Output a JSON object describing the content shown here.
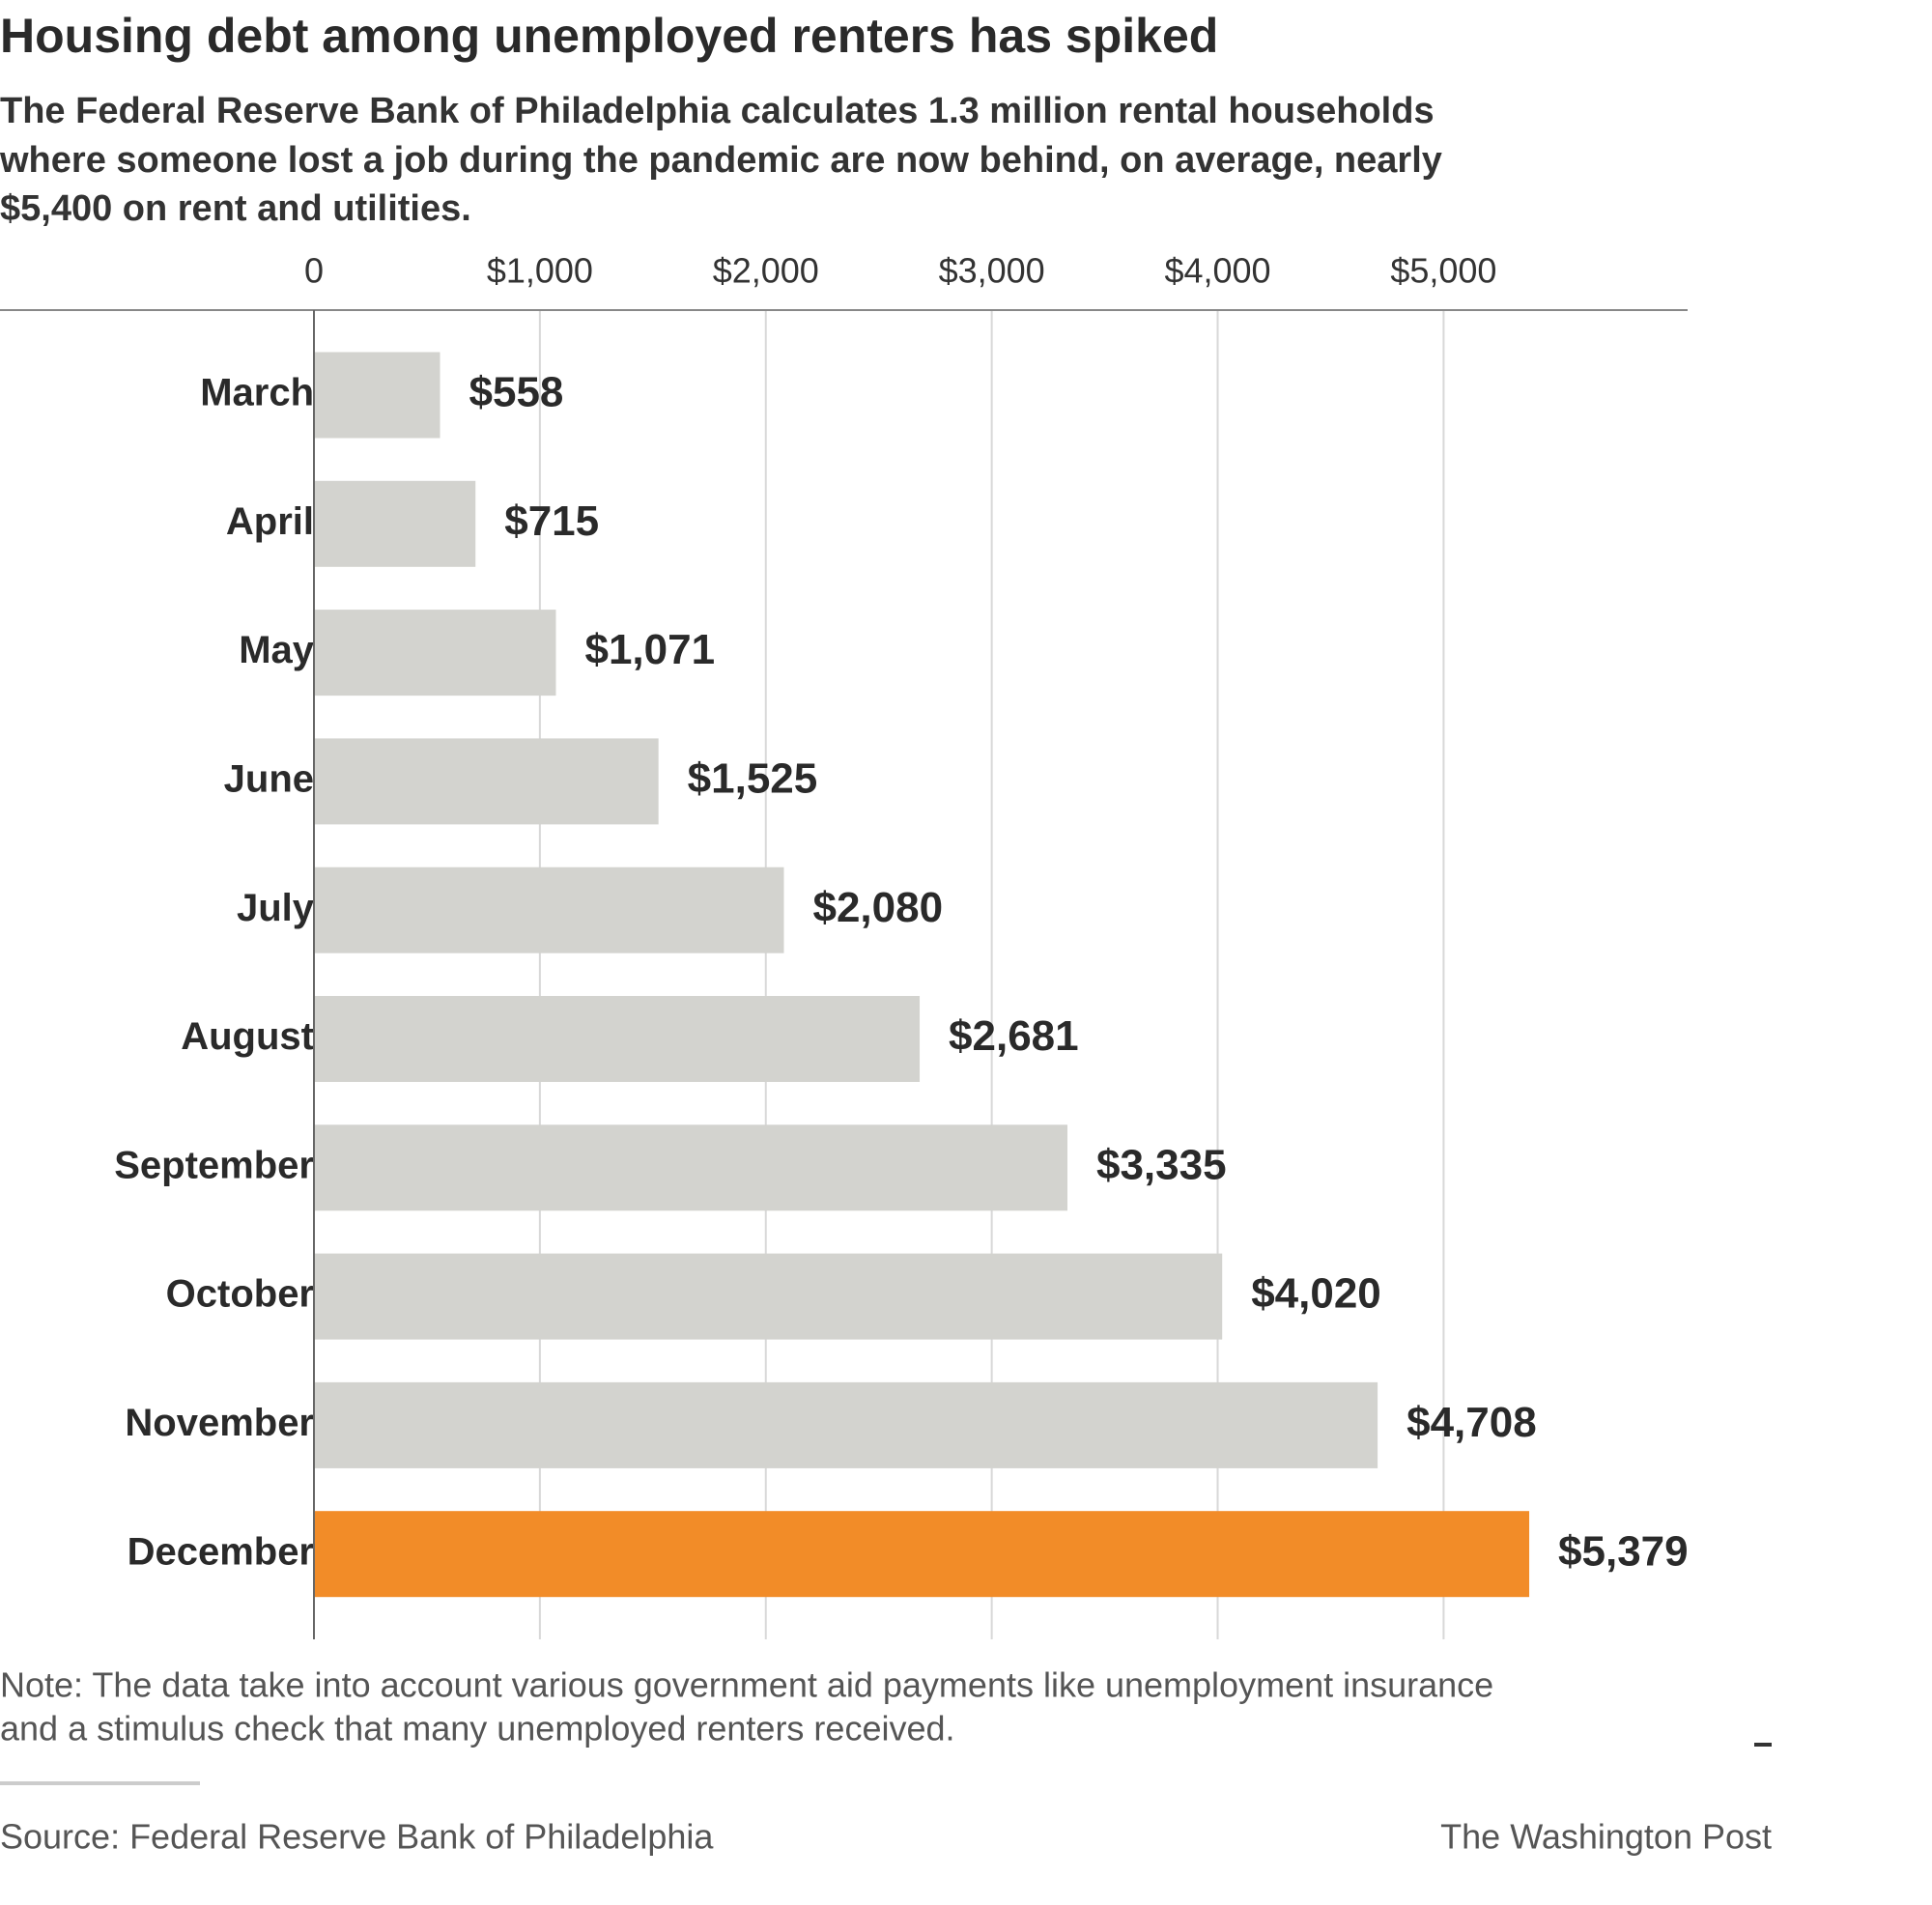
{
  "chart_data": {
    "type": "bar",
    "orientation": "horizontal",
    "title": "Housing debt among unemployed renters has spiked",
    "subtitle": [
      "The Federal Reserve Bank of Philadelphia calculates 1.3 million rental households",
      "where someone lost a job during the pandemic are now behind, on average, nearly",
      "$5,400 on rent and utilities."
    ],
    "categories": [
      "March",
      "April",
      "May",
      "June",
      "July",
      "August",
      "September",
      "October",
      "November",
      "December"
    ],
    "values": [
      558,
      715,
      1071,
      1525,
      2080,
      2681,
      3335,
      4020,
      4708,
      5379
    ],
    "value_labels": [
      "$558",
      "$715",
      "$1,071",
      "$1,525",
      "$2,080",
      "$2,681",
      "$3,335",
      "$4,020",
      "$4,708",
      "$5,379"
    ],
    "colors": [
      "#d3d3cf",
      "#d3d3cf",
      "#d3d3cf",
      "#d3d3cf",
      "#d3d3cf",
      "#d3d3cf",
      "#d3d3cf",
      "#d3d3cf",
      "#d3d3cf",
      "#f28c28"
    ],
    "xlim": [
      0,
      6080
    ],
    "xticks": [
      0,
      {
        "value": 1000,
        "label": "$1,000"
      },
      {
        "value": 2000,
        "label": "$2,000"
      },
      {
        "value": 3000,
        "label": "$3,000"
      },
      {
        "value": 4000,
        "label": "$4,000"
      },
      {
        "value": 5000,
        "label": "$5,000"
      }
    ],
    "grid": true,
    "note": [
      "Note: The data take into account various government aid payments like unemployment insurance",
      "and a stimulus check that many unemployed renters received."
    ],
    "source": "Source: Federal Reserve Bank of Philadelphia",
    "credit": "The Washington Post"
  }
}
